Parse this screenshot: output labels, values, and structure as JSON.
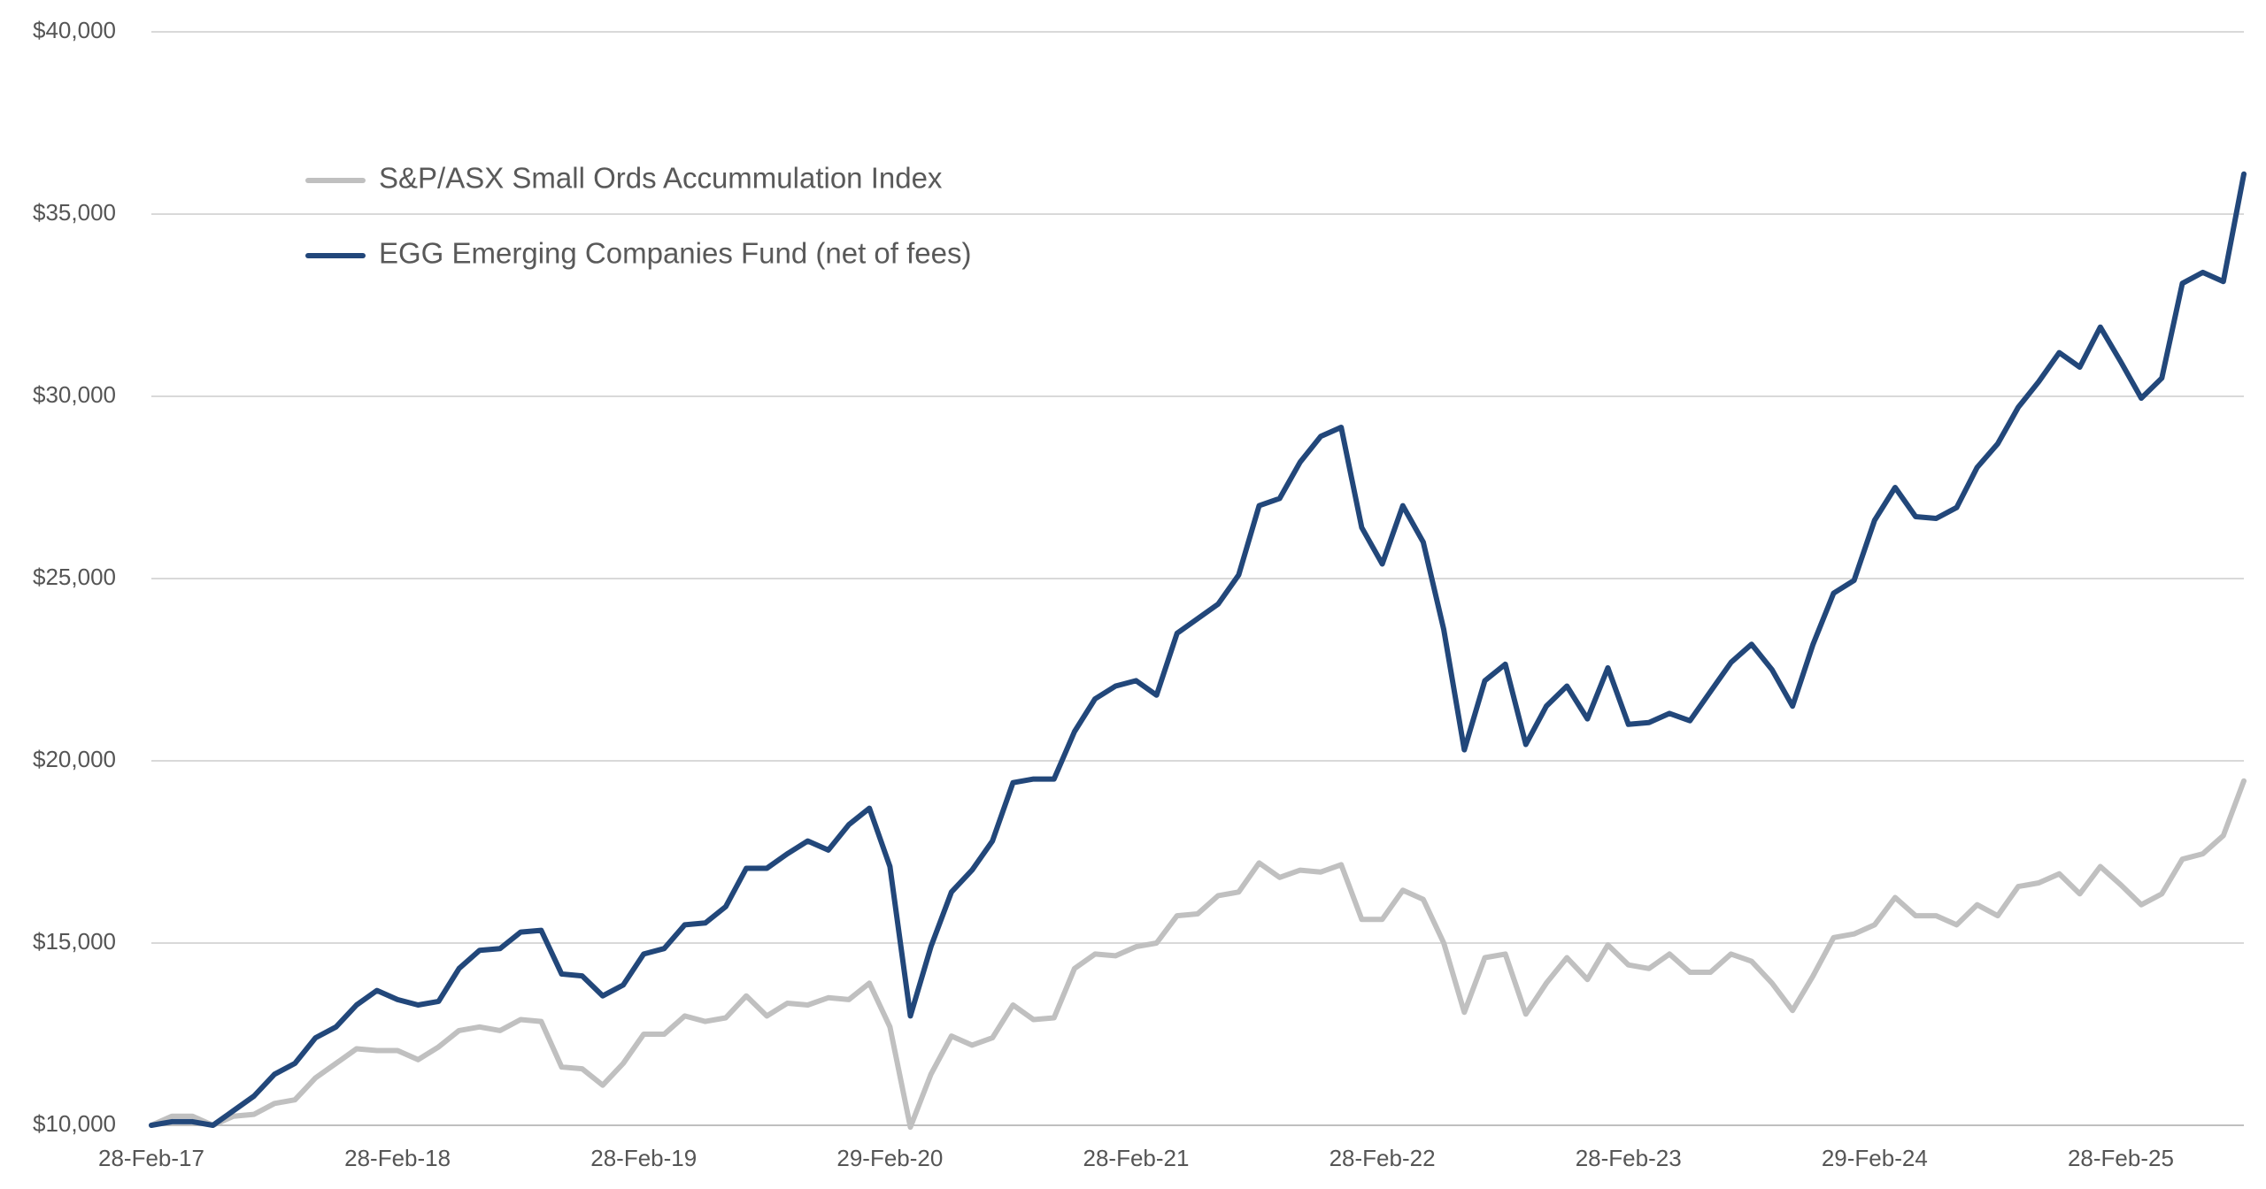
{
  "chart_data": {
    "type": "line",
    "categories": [
      "28-Feb-17",
      null,
      null,
      null,
      null,
      null,
      null,
      null,
      null,
      null,
      null,
      null,
      "28-Feb-18",
      null,
      null,
      null,
      null,
      null,
      null,
      null,
      null,
      null,
      null,
      null,
      "28-Feb-19",
      null,
      null,
      null,
      null,
      null,
      null,
      null,
      null,
      null,
      null,
      null,
      "29-Feb-20",
      null,
      null,
      null,
      null,
      null,
      null,
      null,
      null,
      null,
      null,
      null,
      "28-Feb-21",
      null,
      null,
      null,
      null,
      null,
      null,
      null,
      null,
      null,
      null,
      null,
      "28-Feb-22",
      null,
      null,
      null,
      null,
      null,
      null,
      null,
      null,
      null,
      null,
      null,
      "28-Feb-23",
      null,
      null,
      null,
      null,
      null,
      null,
      null,
      null,
      null,
      null,
      null,
      "29-Feb-24",
      null,
      null,
      null,
      null,
      null,
      null,
      null,
      null,
      null,
      null,
      null,
      "28-Feb-25",
      null,
      null,
      null,
      null,
      null,
      null
    ],
    "series": [
      {
        "name": "S&P/ASX Small Ords Accummulation Index",
        "color": "#c0c0c0",
        "values": [
          10000,
          10250,
          10250,
          10000,
          10250,
          10300,
          10600,
          10700,
          11300,
          11700,
          12100,
          12050,
          12050,
          11800,
          12150,
          12600,
          12700,
          12600,
          12900,
          12850,
          11600,
          11550,
          11100,
          11700,
          12500,
          12500,
          13000,
          12850,
          12950,
          13550,
          13000,
          13350,
          13300,
          13500,
          13450,
          13900,
          12700,
          9950,
          11400,
          12450,
          12200,
          12400,
          13300,
          12900,
          12950,
          14300,
          14700,
          14650,
          14900,
          15000,
          15750,
          15800,
          16300,
          16400,
          17200,
          16800,
          17000,
          16950,
          17150,
          15650,
          15650,
          16450,
          16200,
          15000,
          13100,
          14600,
          14700,
          13050,
          13900,
          14600,
          14000,
          14950,
          14400,
          14300,
          14700,
          14200,
          14200,
          14700,
          14500,
          13900,
          13150,
          14100,
          15150,
          15250,
          15500,
          16250,
          15750,
          15750,
          15500,
          16050,
          15750,
          16550,
          16650,
          16900,
          16350,
          17100,
          16600,
          16050,
          16350,
          17300,
          17450,
          17950,
          19450
        ]
      },
      {
        "name": "EGG Emerging Companies Fund (net of fees)",
        "color": "#22477a",
        "values": [
          10000,
          10100,
          10100,
          10000,
          10400,
          10800,
          11400,
          11700,
          12400,
          12700,
          13300,
          13700,
          13450,
          13300,
          13400,
          14300,
          14800,
          14850,
          15300,
          15350,
          14150,
          14100,
          13550,
          13850,
          14700,
          14850,
          15500,
          15550,
          16000,
          17050,
          17050,
          17450,
          17800,
          17550,
          18250,
          18700,
          17100,
          13000,
          14900,
          16400,
          17000,
          17800,
          19400,
          19500,
          19500,
          20800,
          21700,
          22050,
          22200,
          21800,
          23500,
          23900,
          24300,
          25100,
          27000,
          27200,
          28200,
          28900,
          29150,
          26400,
          25400,
          27000,
          26000,
          23600,
          20300,
          22200,
          22650,
          20450,
          21500,
          22050,
          21150,
          22550,
          21000,
          21050,
          21300,
          21100,
          21900,
          22700,
          23200,
          22500,
          21500,
          23200,
          24600,
          24950,
          26600,
          27500,
          26700,
          26650,
          26950,
          28050,
          28700,
          29700,
          30400,
          31200,
          30800,
          31900,
          30950,
          29950,
          30500,
          33100,
          33400,
          33150,
          36100
        ]
      }
    ],
    "ylim": [
      10000,
      40000
    ],
    "yticks": [
      {
        "value": 10000,
        "label": "$10,000"
      },
      {
        "value": 15000,
        "label": "$15,000"
      },
      {
        "value": 20000,
        "label": "$20,000"
      },
      {
        "value": 25000,
        "label": "$25,000"
      },
      {
        "value": 30000,
        "label": "$30,000"
      },
      {
        "value": 35000,
        "label": "$35,000"
      },
      {
        "value": 40000,
        "label": "$40,000"
      }
    ],
    "grid": true,
    "legend": "upper left"
  }
}
